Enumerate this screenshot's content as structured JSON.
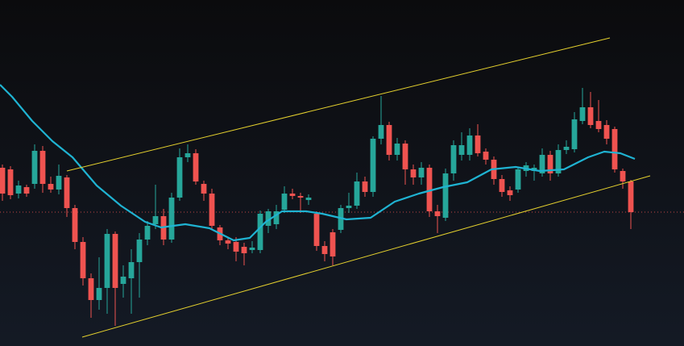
{
  "chart_data": {
    "type": "candlestick",
    "xlim": [
      -0.3,
      84.6
    ],
    "ylim": [
      0,
      429
    ],
    "up_color": "#26a69a",
    "down_color": "#ef5350",
    "candles": [
      {
        "open": 221,
        "high": 225,
        "low": 180,
        "close": 189
      },
      {
        "open": 219,
        "high": 223,
        "low": 182,
        "close": 187
      },
      {
        "open": 189,
        "high": 205,
        "low": 183,
        "close": 199
      },
      {
        "open": 197,
        "high": 200,
        "low": 185,
        "close": 189
      },
      {
        "open": 201,
        "high": 250,
        "low": 195,
        "close": 242
      },
      {
        "open": 242,
        "high": 248,
        "low": 190,
        "close": 201
      },
      {
        "open": 201,
        "high": 210,
        "low": 190,
        "close": 194
      },
      {
        "open": 194,
        "high": 225,
        "low": 188,
        "close": 211
      },
      {
        "open": 209,
        "high": 212,
        "low": 160,
        "close": 171
      },
      {
        "open": 171,
        "high": 175,
        "low": 120,
        "close": 129
      },
      {
        "open": 129,
        "high": 135,
        "low": 75,
        "close": 84
      },
      {
        "open": 84,
        "high": 90,
        "low": 35,
        "close": 57
      },
      {
        "open": 57,
        "high": 110,
        "low": 45,
        "close": 72
      },
      {
        "open": 72,
        "high": 145,
        "low": 40,
        "close": 139
      },
      {
        "open": 139,
        "high": 142,
        "low": 25,
        "close": 72
      },
      {
        "open": 77,
        "high": 100,
        "low": 60,
        "close": 86
      },
      {
        "open": 84,
        "high": 120,
        "low": 40,
        "close": 104
      },
      {
        "open": 104,
        "high": 140,
        "low": 60,
        "close": 132
      },
      {
        "open": 132,
        "high": 155,
        "low": 125,
        "close": 149
      },
      {
        "open": 151,
        "high": 200,
        "low": 145,
        "close": 161
      },
      {
        "open": 161,
        "high": 170,
        "low": 125,
        "close": 132
      },
      {
        "open": 132,
        "high": 190,
        "low": 128,
        "close": 184
      },
      {
        "open": 184,
        "high": 245,
        "low": 180,
        "close": 234
      },
      {
        "open": 234,
        "high": 250,
        "low": 228,
        "close": 239
      },
      {
        "open": 239,
        "high": 244,
        "low": 200,
        "close": 204
      },
      {
        "open": 201,
        "high": 205,
        "low": 180,
        "close": 189
      },
      {
        "open": 189,
        "high": 195,
        "low": 145,
        "close": 149
      },
      {
        "open": 147,
        "high": 150,
        "low": 125,
        "close": 131
      },
      {
        "open": 131,
        "high": 135,
        "low": 120,
        "close": 127
      },
      {
        "open": 129,
        "high": 135,
        "low": 105,
        "close": 117
      },
      {
        "open": 123,
        "high": 128,
        "low": 100,
        "close": 115
      },
      {
        "open": 119,
        "high": 130,
        "low": 115,
        "close": 122
      },
      {
        "open": 119,
        "high": 168,
        "low": 115,
        "close": 164
      },
      {
        "open": 149,
        "high": 170,
        "low": 140,
        "close": 167
      },
      {
        "open": 151,
        "high": 175,
        "low": 145,
        "close": 167
      },
      {
        "open": 169,
        "high": 198,
        "low": 165,
        "close": 189
      },
      {
        "open": 189,
        "high": 195,
        "low": 182,
        "close": 186
      },
      {
        "open": 186,
        "high": 190,
        "low": 165,
        "close": 184
      },
      {
        "open": 181,
        "high": 188,
        "low": 175,
        "close": 184
      },
      {
        "open": 164,
        "high": 167,
        "low": 118,
        "close": 124
      },
      {
        "open": 124,
        "high": 130,
        "low": 105,
        "close": 114
      },
      {
        "open": 141,
        "high": 145,
        "low": 100,
        "close": 111
      },
      {
        "open": 144,
        "high": 175,
        "low": 140,
        "close": 171
      },
      {
        "open": 171,
        "high": 190,
        "low": 165,
        "close": 174
      },
      {
        "open": 174,
        "high": 215,
        "low": 170,
        "close": 204
      },
      {
        "open": 204,
        "high": 210,
        "low": 185,
        "close": 191
      },
      {
        "open": 191,
        "high": 260,
        "low": 185,
        "close": 257
      },
      {
        "open": 257,
        "high": 310,
        "low": 250,
        "close": 274
      },
      {
        "open": 274,
        "high": 278,
        "low": 230,
        "close": 237
      },
      {
        "open": 237,
        "high": 258,
        "low": 230,
        "close": 251
      },
      {
        "open": 251,
        "high": 255,
        "low": 200,
        "close": 219
      },
      {
        "open": 219,
        "high": 225,
        "low": 200,
        "close": 209
      },
      {
        "open": 209,
        "high": 228,
        "low": 200,
        "close": 221
      },
      {
        "open": 221,
        "high": 225,
        "low": 160,
        "close": 167
      },
      {
        "open": 167,
        "high": 175,
        "low": 140,
        "close": 161
      },
      {
        "open": 159,
        "high": 220,
        "low": 155,
        "close": 214
      },
      {
        "open": 214,
        "high": 255,
        "low": 205,
        "close": 249
      },
      {
        "open": 237,
        "high": 265,
        "low": 230,
        "close": 249
      },
      {
        "open": 237,
        "high": 270,
        "low": 230,
        "close": 261
      },
      {
        "open": 261,
        "high": 275,
        "low": 235,
        "close": 239
      },
      {
        "open": 241,
        "high": 245,
        "low": 225,
        "close": 231
      },
      {
        "open": 231,
        "high": 235,
        "low": 200,
        "close": 207
      },
      {
        "open": 207,
        "high": 212,
        "low": 185,
        "close": 191
      },
      {
        "open": 193,
        "high": 198,
        "low": 180,
        "close": 187
      },
      {
        "open": 194,
        "high": 222,
        "low": 190,
        "close": 219
      },
      {
        "open": 217,
        "high": 228,
        "low": 210,
        "close": 224
      },
      {
        "open": 217,
        "high": 225,
        "low": 205,
        "close": 221
      },
      {
        "open": 214,
        "high": 245,
        "low": 210,
        "close": 237
      },
      {
        "open": 237,
        "high": 242,
        "low": 205,
        "close": 214
      },
      {
        "open": 214,
        "high": 250,
        "low": 210,
        "close": 243
      },
      {
        "open": 243,
        "high": 255,
        "low": 238,
        "close": 247
      },
      {
        "open": 244,
        "high": 290,
        "low": 240,
        "close": 281
      },
      {
        "open": 279,
        "high": 320,
        "low": 275,
        "close": 296
      },
      {
        "open": 296,
        "high": 315,
        "low": 270,
        "close": 274
      },
      {
        "open": 279,
        "high": 305,
        "low": 265,
        "close": 269
      },
      {
        "open": 274,
        "high": 280,
        "low": 250,
        "close": 257
      },
      {
        "open": 269,
        "high": 272,
        "low": 215,
        "close": 219
      },
      {
        "open": 217,
        "high": 220,
        "low": 195,
        "close": 204
      },
      {
        "open": 204,
        "high": 206,
        "low": 145,
        "close": 166
      }
    ],
    "moving_average": {
      "color": "#1fb3d2",
      "x": [
        -0.3,
        1.2,
        3.7,
        6.2,
        8.7,
        11.7,
        14.7,
        17.7,
        19.7,
        22.7,
        25.7,
        28.7,
        30.7,
        32.7,
        34.7,
        37.7,
        39.7,
        42.7,
        45.7,
        48.7,
        51.7,
        54.7,
        57.7,
        60.7,
        63.7,
        66.7,
        69.7,
        72.7,
        74.7,
        76.7,
        78.5
      ],
      "values": [
        324,
        309,
        279,
        254,
        234,
        199,
        174,
        154,
        147,
        151,
        146,
        131,
        134,
        154,
        167,
        167,
        164,
        157,
        159,
        179,
        189,
        197,
        203,
        219,
        222,
        217,
        219,
        234,
        241,
        239,
        232
      ]
    },
    "trendlines": [
      {
        "color": "#e5d12e",
        "x": [
          8,
          75.4
        ],
        "values": [
          217,
          382
        ]
      },
      {
        "color": "#e5d12e",
        "x": [
          9.9,
          80.4
        ],
        "values": [
          11,
          211
        ]
      }
    ],
    "price_line": {
      "value": 166,
      "color": "#ef5350"
    }
  }
}
